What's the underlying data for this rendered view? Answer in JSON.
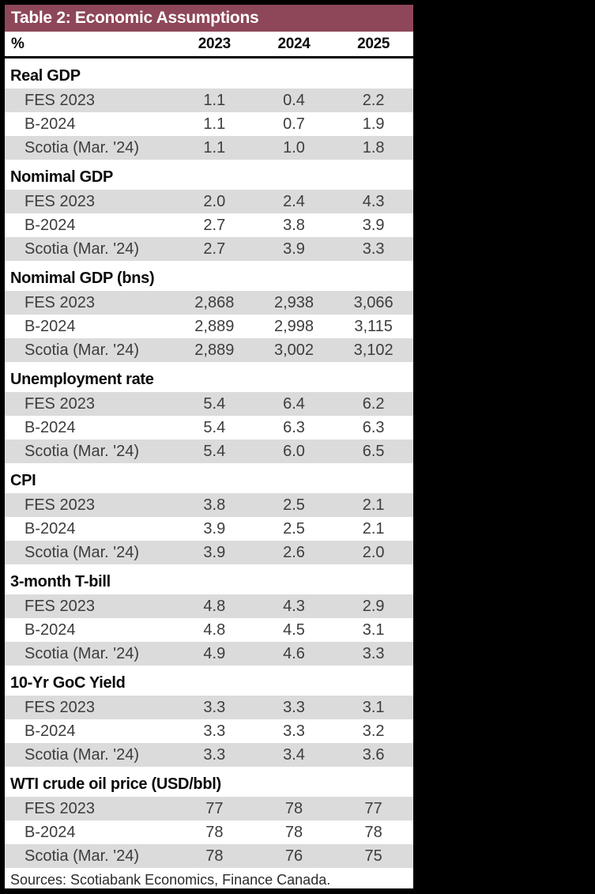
{
  "table": {
    "title": "Table 2: Economic Assumptions",
    "unit_label": "%",
    "years": [
      "2023",
      "2024",
      "2025"
    ],
    "sections": [
      {
        "name": "Real GDP",
        "rows": [
          {
            "label": "FES 2023",
            "values": [
              "1.1",
              "0.4",
              "2.2"
            ]
          },
          {
            "label": "B-2024",
            "values": [
              "1.1",
              "0.7",
              "1.9"
            ]
          },
          {
            "label": "Scotia (Mar. '24)",
            "values": [
              "1.1",
              "1.0",
              "1.8"
            ]
          }
        ]
      },
      {
        "name": "Nomimal GDP",
        "rows": [
          {
            "label": "FES 2023",
            "values": [
              "2.0",
              "2.4",
              "4.3"
            ]
          },
          {
            "label": "B-2024",
            "values": [
              "2.7",
              "3.8",
              "3.9"
            ]
          },
          {
            "label": "Scotia (Mar. '24)",
            "values": [
              "2.7",
              "3.9",
              "3.3"
            ]
          }
        ]
      },
      {
        "name": "Nomimal GDP (bns)",
        "rows": [
          {
            "label": "FES 2023",
            "values": [
              "2,868",
              "2,938",
              "3,066"
            ]
          },
          {
            "label": "B-2024",
            "values": [
              "2,889",
              "2,998",
              "3,115"
            ]
          },
          {
            "label": "Scotia (Mar. '24)",
            "values": [
              "2,889",
              "3,002",
              "3,102"
            ]
          }
        ]
      },
      {
        "name": "Unemployment rate",
        "rows": [
          {
            "label": "FES 2023",
            "values": [
              "5.4",
              "6.4",
              "6.2"
            ]
          },
          {
            "label": "B-2024",
            "values": [
              "5.4",
              "6.3",
              "6.3"
            ]
          },
          {
            "label": "Scotia (Mar. '24)",
            "values": [
              "5.4",
              "6.0",
              "6.5"
            ]
          }
        ]
      },
      {
        "name": "CPI",
        "rows": [
          {
            "label": "FES 2023",
            "values": [
              "3.8",
              "2.5",
              "2.1"
            ]
          },
          {
            "label": "B-2024",
            "values": [
              "3.9",
              "2.5",
              "2.1"
            ]
          },
          {
            "label": "Scotia (Mar. '24)",
            "values": [
              "3.9",
              "2.6",
              "2.0"
            ]
          }
        ]
      },
      {
        "name": "3-month T-bill",
        "rows": [
          {
            "label": "FES 2023",
            "values": [
              "4.8",
              "4.3",
              "2.9"
            ]
          },
          {
            "label": "B-2024",
            "values": [
              "4.8",
              "4.5",
              "3.1"
            ]
          },
          {
            "label": "Scotia (Mar. '24)",
            "values": [
              "4.9",
              "4.6",
              "3.3"
            ]
          }
        ]
      },
      {
        "name": "10-Yr GoC Yield",
        "rows": [
          {
            "label": "FES 2023",
            "values": [
              "3.3",
              "3.3",
              "3.1"
            ]
          },
          {
            "label": "B-2024",
            "values": [
              "3.3",
              "3.3",
              "3.2"
            ]
          },
          {
            "label": "Scotia (Mar. '24)",
            "values": [
              "3.3",
              "3.4",
              "3.6"
            ]
          }
        ]
      },
      {
        "name": "WTI crude oil price (USD/bbl)",
        "rows": [
          {
            "label": "FES 2023",
            "values": [
              "77",
              "78",
              "77"
            ]
          },
          {
            "label": "B-2024",
            "values": [
              "78",
              "78",
              "78"
            ]
          },
          {
            "label": "Scotia (Mar. '24)",
            "values": [
              "78",
              "76",
              "75"
            ]
          }
        ]
      }
    ],
    "source_note": "Sources: Scotiabank Economics, Finance Canada.",
    "colors": {
      "title_bar_bg": "#8D4758",
      "title_text": "#FFFFFF",
      "stripe_gray": "#DBDBDB",
      "header_text": "#0A0A0A",
      "data_text": "#3D3D3D",
      "page_bg": "#000000"
    }
  }
}
